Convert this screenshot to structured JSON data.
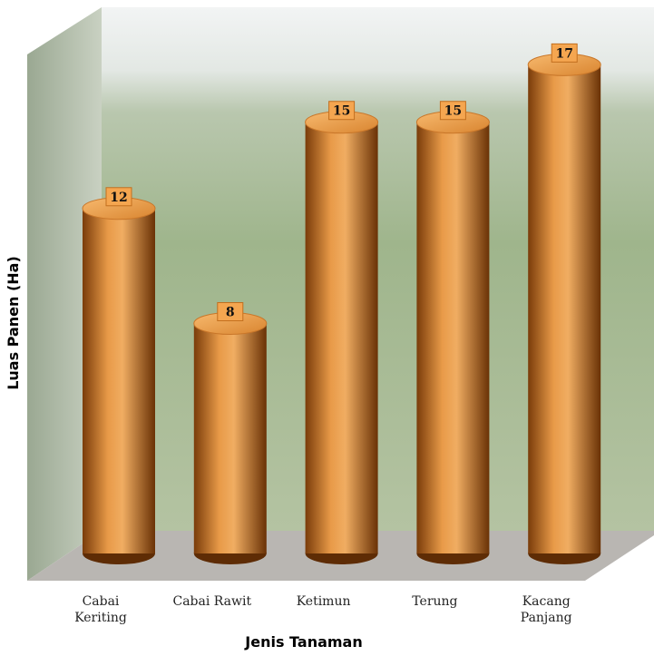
{
  "chart_data": {
    "type": "bar",
    "categories": [
      "Cabai Keriting",
      "Cabai Rawit",
      "Ketimun",
      "Terung",
      "Kacang Panjang"
    ],
    "values": [
      12,
      8,
      15,
      15,
      17
    ],
    "color": "#e08a30",
    "ylim": [
      0,
      19
    ],
    "xlabel": "Jenis Tanaman",
    "ylabel": "Luas Panen (Ha)"
  }
}
